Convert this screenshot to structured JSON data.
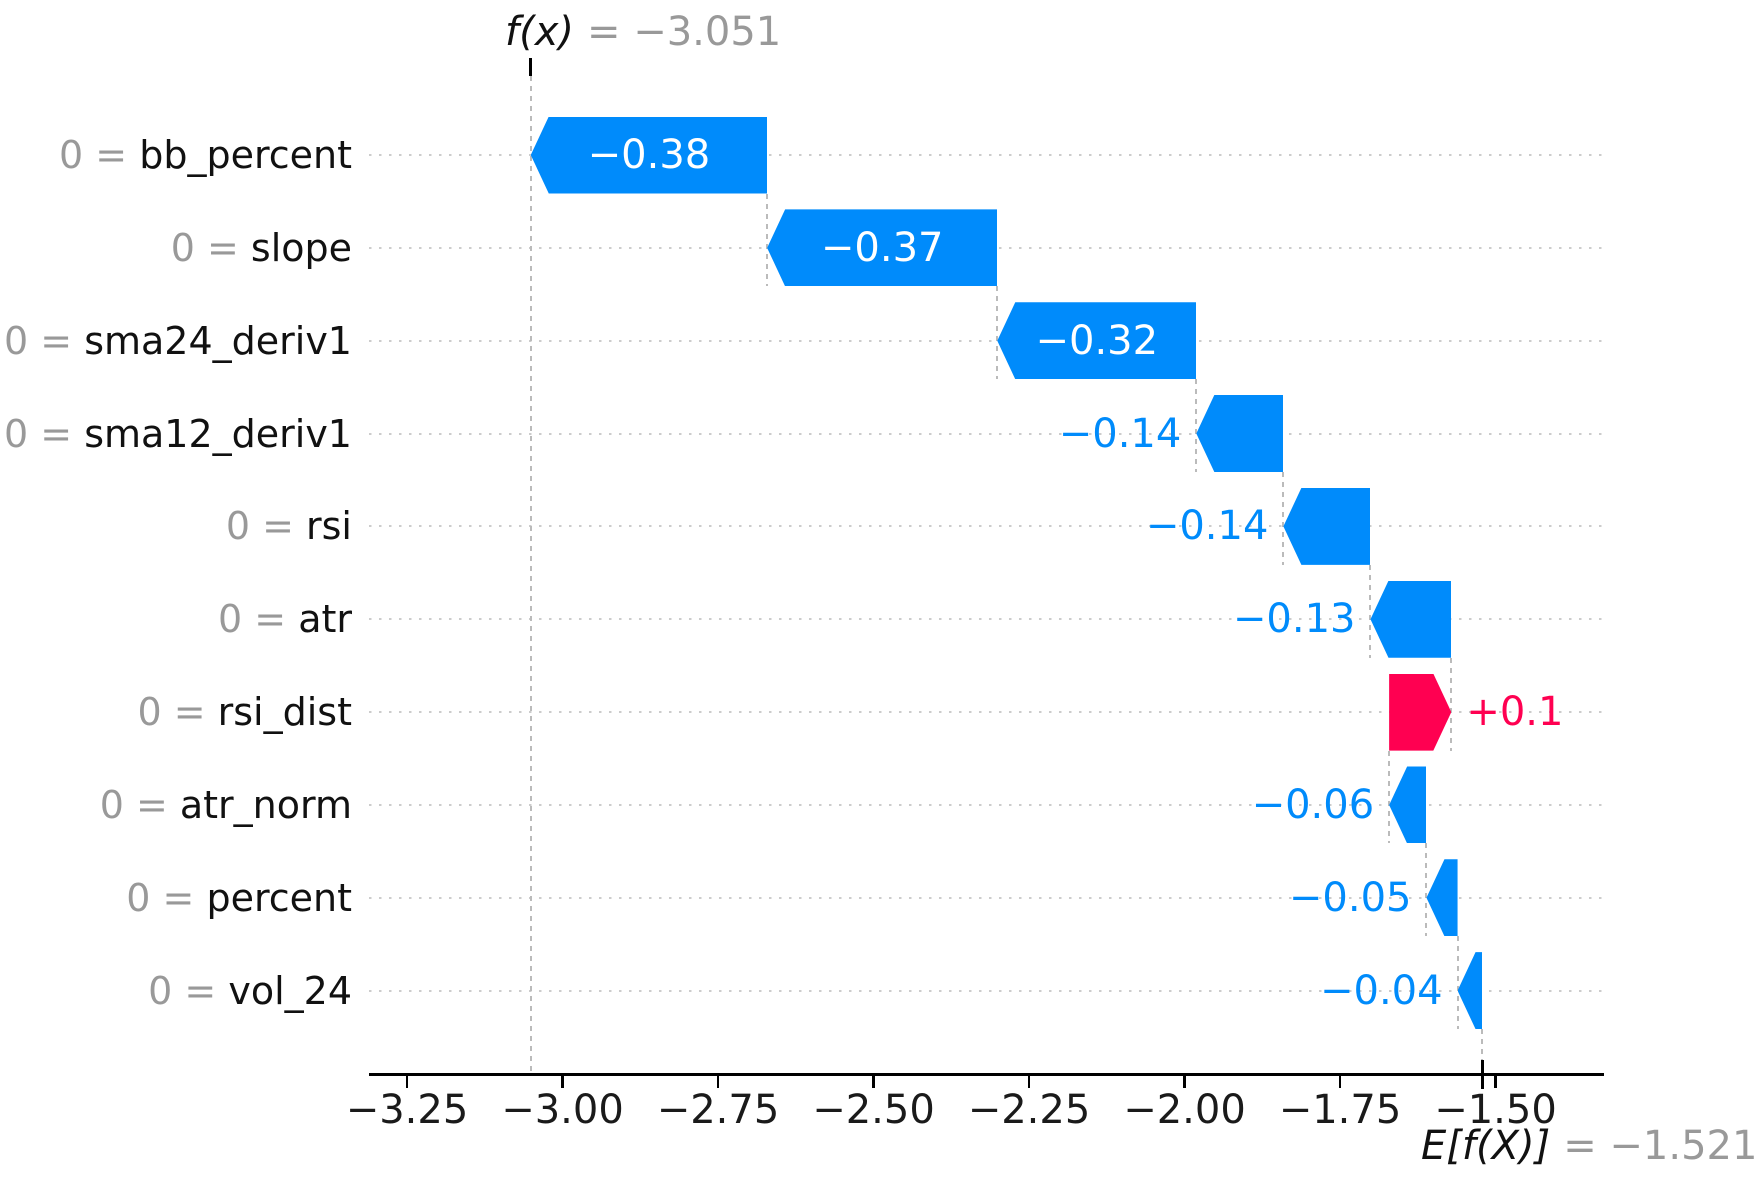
{
  "annotations": {
    "fx": {
      "lhs": "f(x)",
      "rhs": "= −3.051"
    },
    "base": {
      "lhs": "E[f(X)]",
      "rhs": "= −1.521"
    }
  },
  "chart_data": {
    "type": "bar",
    "variant": "shap-waterfall",
    "orientation": "horizontal",
    "title": "f(x) = −3.051",
    "fx": -3.051,
    "base_value": -1.521,
    "base_label_text": "E[f(X)] = −1.521",
    "equals_sign": "=",
    "features": [
      {
        "name": "bb_percent",
        "data_value": "0",
        "shap": -0.38,
        "shap_label": "−0.38"
      },
      {
        "name": "slope",
        "data_value": "0",
        "shap": -0.37,
        "shap_label": "−0.37"
      },
      {
        "name": "sma24_deriv1",
        "data_value": "0",
        "shap": -0.32,
        "shap_label": "−0.32"
      },
      {
        "name": "sma12_deriv1",
        "data_value": "0",
        "shap": -0.14,
        "shap_label": "−0.14"
      },
      {
        "name": "rsi",
        "data_value": "0",
        "shap": -0.14,
        "shap_label": "−0.14"
      },
      {
        "name": "atr",
        "data_value": "0",
        "shap": -0.13,
        "shap_label": "−0.13"
      },
      {
        "name": "rsi_dist",
        "data_value": "0",
        "shap": 0.1,
        "shap_label": "+0.1"
      },
      {
        "name": "atr_norm",
        "data_value": "0",
        "shap": -0.06,
        "shap_label": "−0.06"
      },
      {
        "name": "percent",
        "data_value": "0",
        "shap": -0.05,
        "shap_label": "−0.05"
      },
      {
        "name": "vol_24",
        "data_value": "0",
        "shap": -0.04,
        "shap_label": "−0.04"
      }
    ],
    "x_axis": {
      "tick_values": [
        -3.25,
        -3.0,
        -2.75,
        -2.5,
        -2.25,
        -2.0,
        -1.75,
        -1.5
      ],
      "tick_labels": [
        "−3.25",
        "−3.00",
        "−2.75",
        "−2.50",
        "−2.25",
        "−2.00",
        "−1.75",
        "−1.50"
      ],
      "xlim": [
        -3.31,
        -1.33
      ]
    },
    "grid": "dotted horizontal guide per row, dashed connectors between bars",
    "legend": null,
    "colors": {
      "negative_bar": "#008bfb",
      "positive_bar": "#ff0051",
      "inside_value_text": "#ffffff",
      "feature_value_gray": "#999999",
      "feature_name_black": "#111111",
      "tick_text": "#1a1a1a",
      "row_guide_dotted": "#cccccc",
      "connector_dashed": "#bbbbbb",
      "axis": "#000000"
    }
  }
}
